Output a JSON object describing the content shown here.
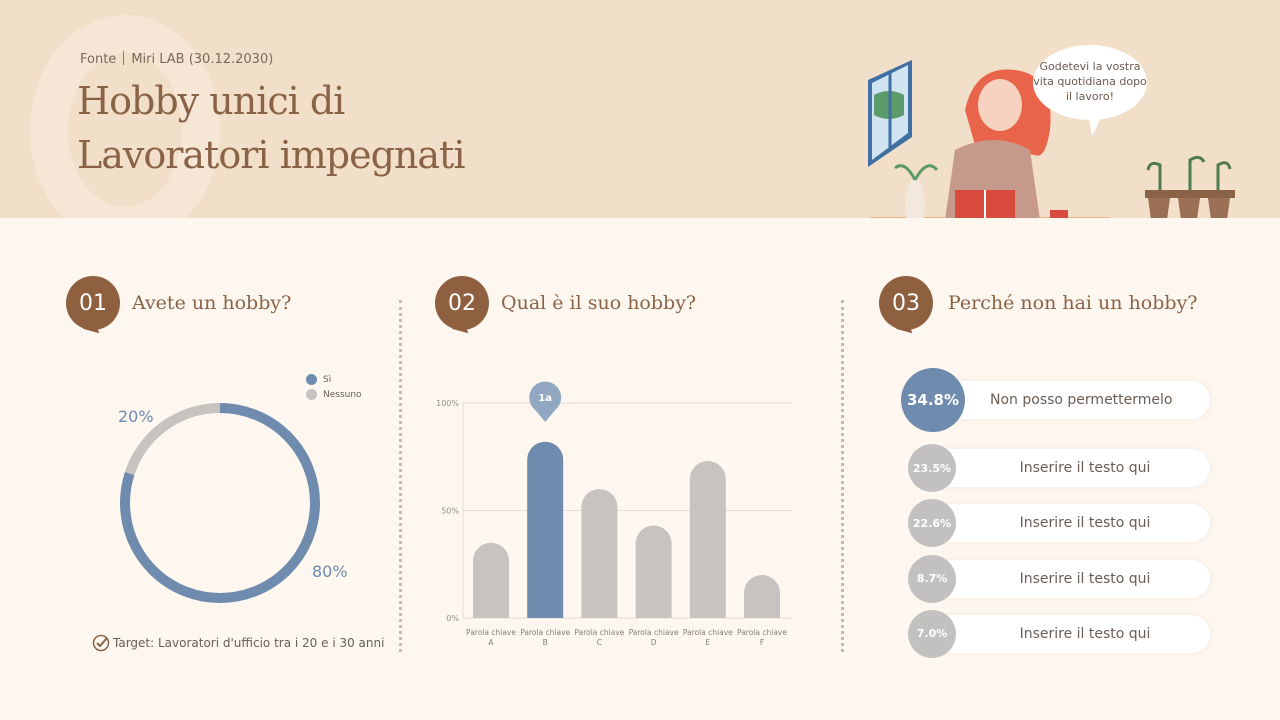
{
  "header": {
    "source_label": "Fonte",
    "source_value": "Miri LAB (30.12.2030)",
    "title_line1": "Hobby unici di",
    "title_line2": "Lavoratori impegnati",
    "speech": "Godetevi la vostra vita quotidiana dopo il lavoro!"
  },
  "colors": {
    "accent": "#6f8bad",
    "gray": "#c6c3c0",
    "brown": "#8f603f",
    "header_bg": "#f2dfc9"
  },
  "panels": [
    {
      "number": "01",
      "question": "Avete un hobby?",
      "target": "Target: Lavoratori d'ufficio tra i 20 e i 30 anni"
    },
    {
      "number": "02",
      "question": "Qual è il suo hobby?",
      "marker": "1a"
    },
    {
      "number": "03",
      "question": "Perché non hai un hobby?"
    }
  ],
  "chart_data": [
    {
      "type": "pie",
      "variant": "donut",
      "series": [
        {
          "name": "Sì",
          "value": 80,
          "label": "80%",
          "color": "#6f8bad"
        },
        {
          "name": "Nessuno",
          "value": 20,
          "label": "20%",
          "color": "#c6c3c0"
        }
      ],
      "legend": "top-right"
    },
    {
      "type": "bar",
      "categories": [
        "Parola chiave A",
        "Parola chiave B",
        "Parola chiave C",
        "Parola chiave D",
        "Parola chiave E",
        "Parola chiave F"
      ],
      "values": [
        35,
        82,
        60,
        43,
        73,
        20
      ],
      "highlight": "Parola chiave B",
      "yticks": [
        "0%",
        "50%",
        "100%"
      ],
      "ylim": [
        0,
        100
      ],
      "grid": true
    },
    {
      "type": "table",
      "rows": [
        {
          "value": "34.8%",
          "label": "Non posso permettermelo"
        },
        {
          "value": "23.5%",
          "label": "Inserire il testo qui"
        },
        {
          "value": "22.6%",
          "label": "Inserire il testo qui"
        },
        {
          "value": "8.7%",
          "label": "Inserire il testo qui"
        },
        {
          "value": "7.0%",
          "label": "Inserire il testo qui"
        }
      ]
    }
  ]
}
